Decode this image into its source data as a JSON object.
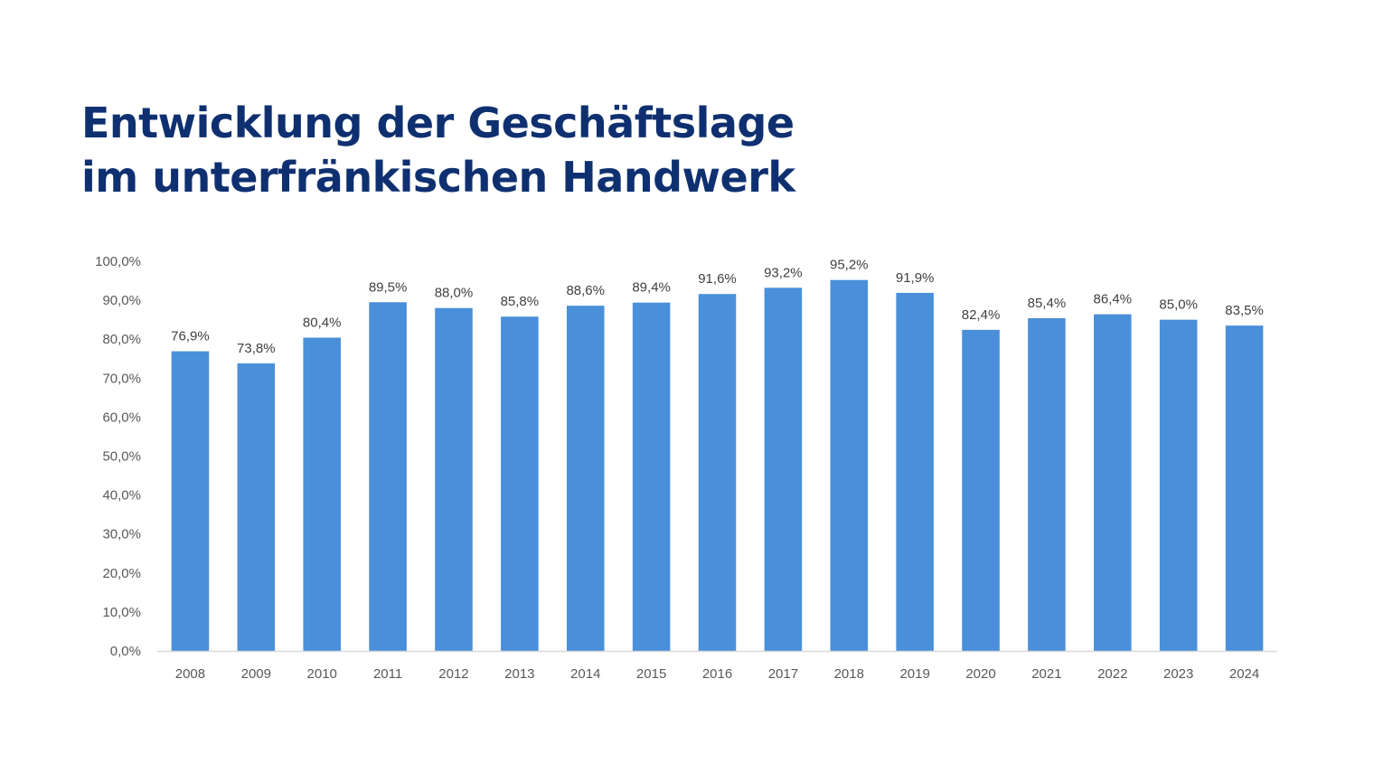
{
  "title_lines": [
    "Entwicklung der Geschäftslage",
    "im unterfränkischen Handwerk"
  ],
  "colors": {
    "bar": "#4a8fda",
    "title": "#0f3070",
    "axis": "#d9d9d9"
  },
  "chart_data": {
    "type": "bar",
    "title": "Entwicklung der Geschäftslage im unterfränkischen Handwerk",
    "categories": [
      "2008",
      "2009",
      "2010",
      "2011",
      "2012",
      "2013",
      "2014",
      "2015",
      "2016",
      "2017",
      "2018",
      "2019",
      "2020",
      "2021",
      "2022",
      "2023",
      "2024"
    ],
    "values": [
      76.9,
      73.8,
      80.4,
      89.5,
      88.0,
      85.8,
      88.6,
      89.4,
      91.6,
      93.2,
      95.2,
      91.9,
      82.4,
      85.4,
      86.4,
      85.0,
      83.5
    ],
    "data_labels": [
      "76,9%",
      "73,8%",
      "80,4%",
      "89,5%",
      "88,0%",
      "85,8%",
      "88,6%",
      "89,4%",
      "91,6%",
      "93,2%",
      "95,2%",
      "91,9%",
      "82,4%",
      "85,4%",
      "86,4%",
      "85,0%",
      "83,5%"
    ],
    "ylim": [
      0,
      100
    ],
    "y_ticks": [
      0,
      10,
      20,
      30,
      40,
      50,
      60,
      70,
      80,
      90,
      100
    ],
    "y_tick_labels": [
      "0,0%",
      "10,0%",
      "20,0%",
      "30,0%",
      "40,0%",
      "50,0%",
      "60,0%",
      "70,0%",
      "80,0%",
      "90,0%",
      "100,0%"
    ],
    "grid": false,
    "xlabel": "",
    "ylabel": ""
  }
}
